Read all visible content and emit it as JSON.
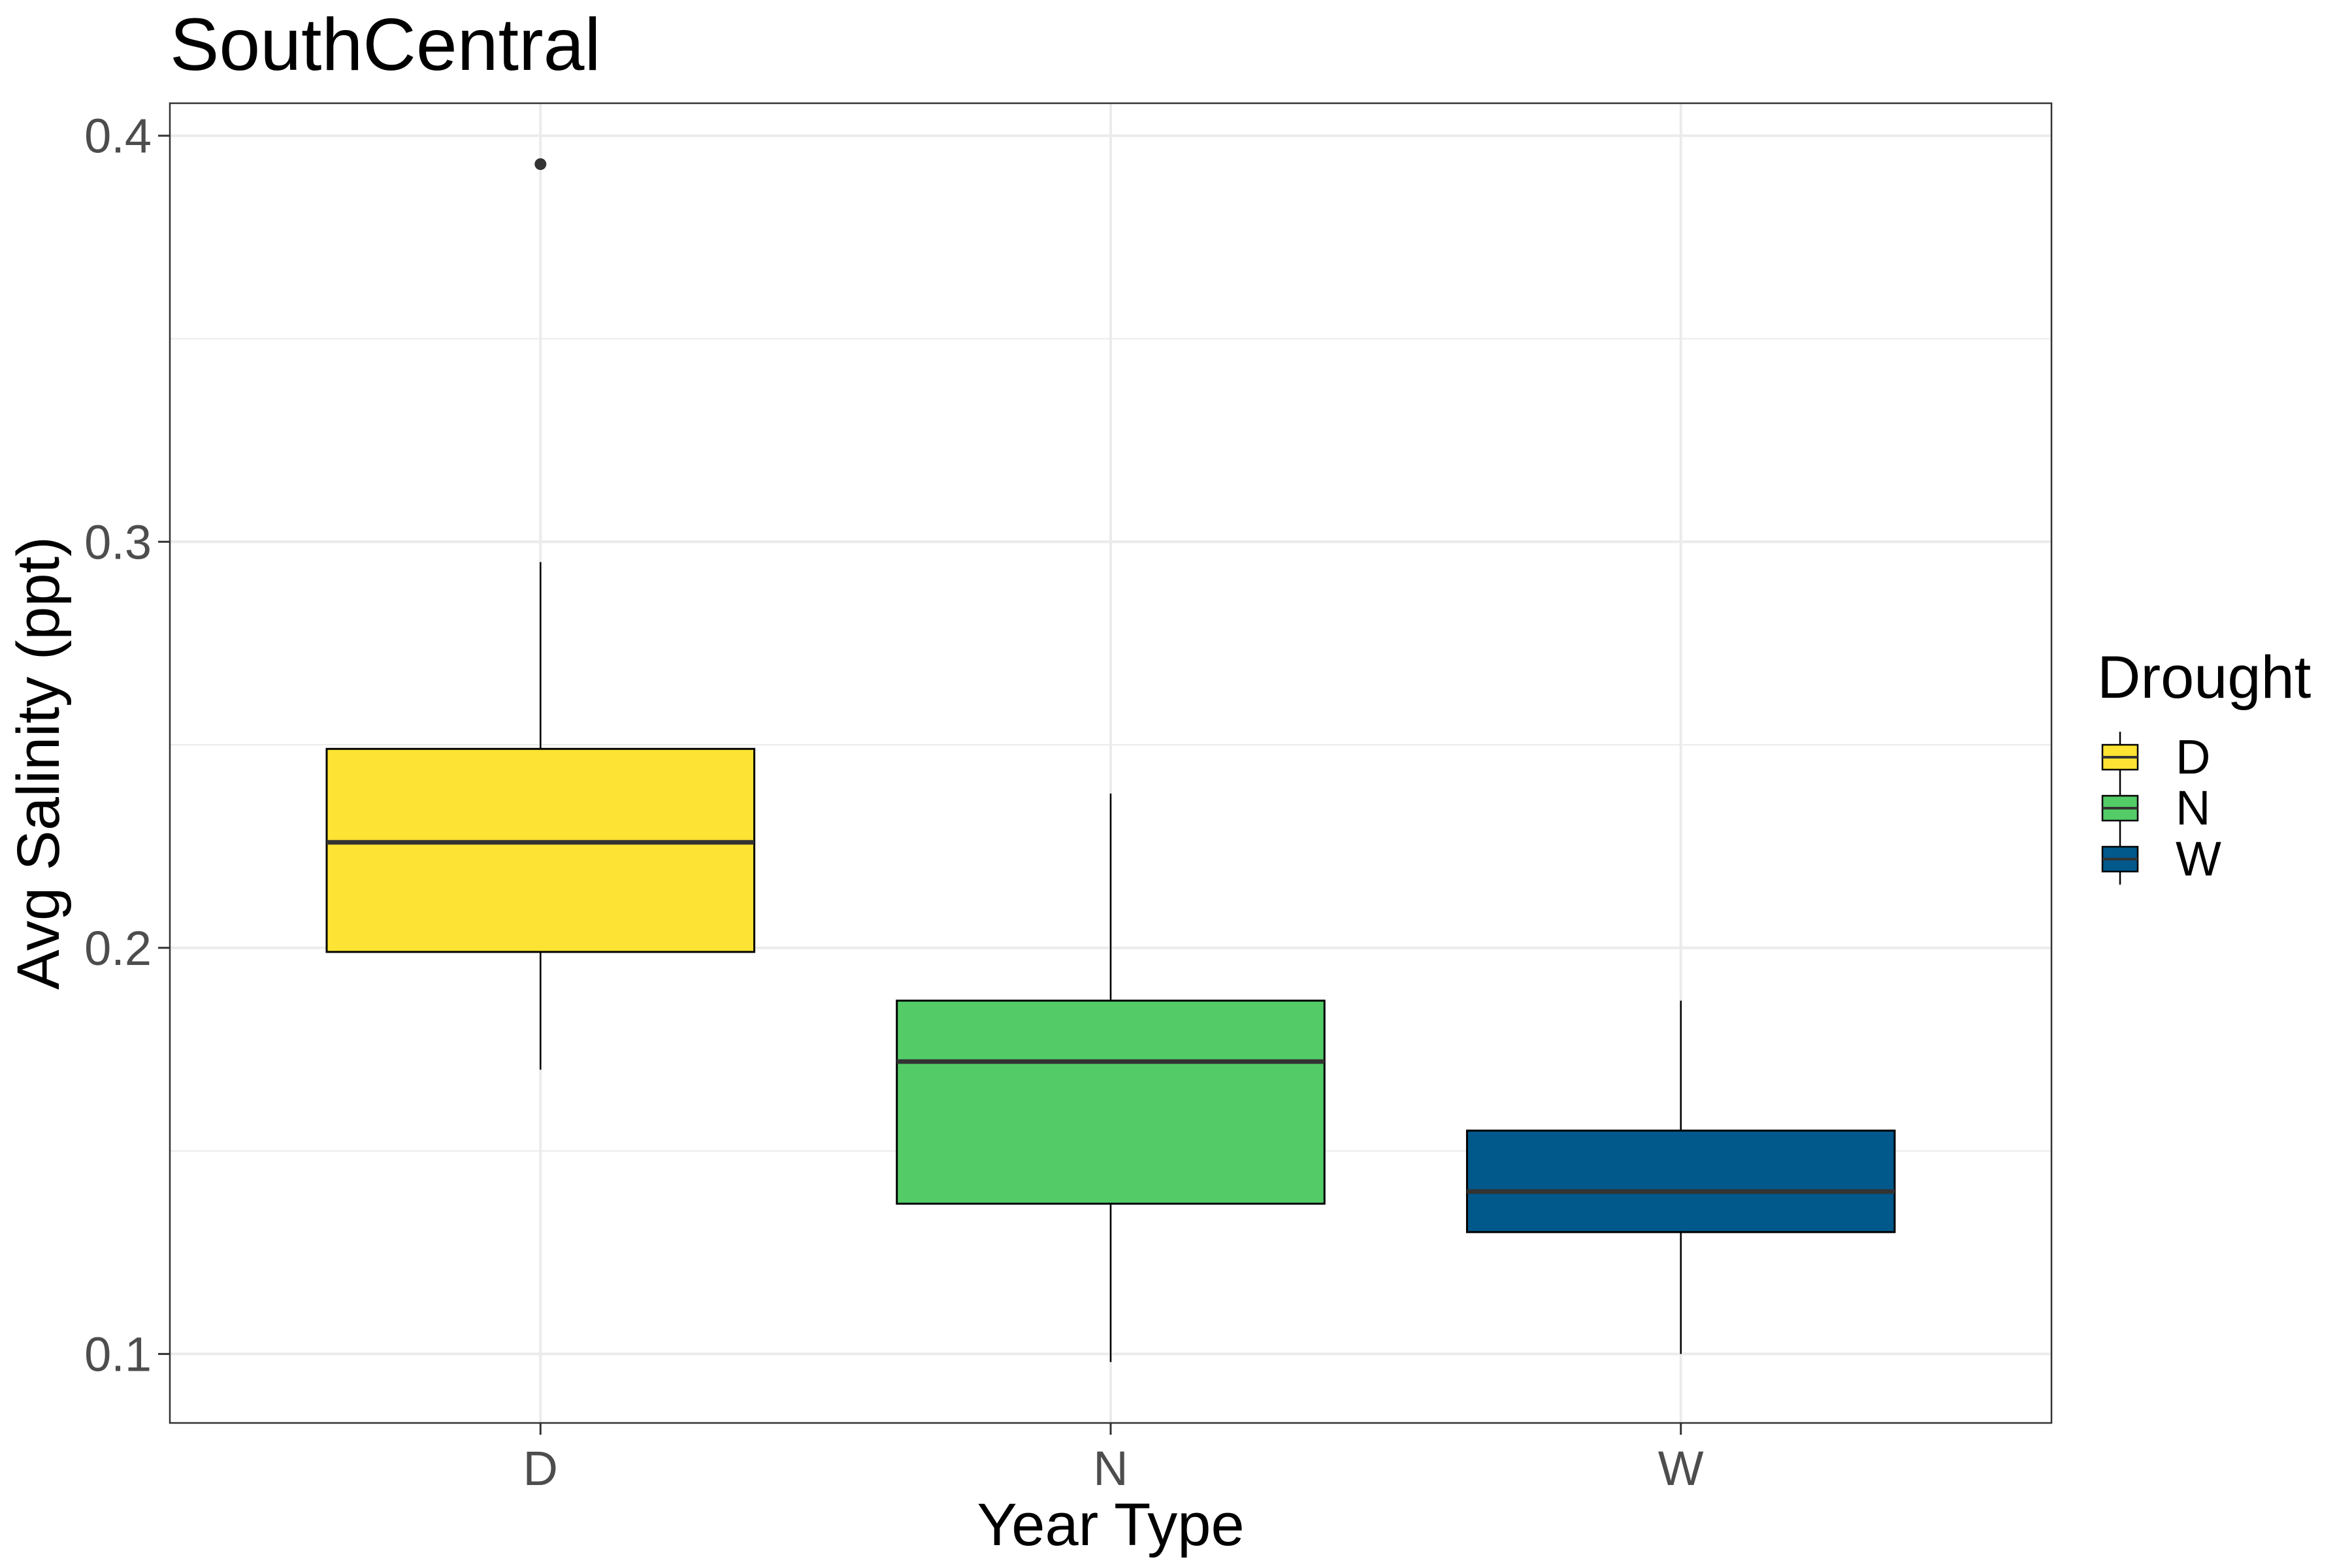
{
  "chart_data": {
    "type": "box",
    "title": "SouthCentral",
    "xlabel": "Year Type",
    "ylabel": "Avg Salinity (ppt)",
    "ylim": [
      0.083,
      0.408
    ],
    "y_ticks": [
      0.1,
      0.2,
      0.3,
      0.4
    ],
    "y_tick_labels": [
      "0.1",
      "0.2",
      "0.3",
      "0.4"
    ],
    "categories": [
      "D",
      "N",
      "W"
    ],
    "boxes": [
      {
        "category": "D",
        "whisker_low": 0.17,
        "q1": 0.199,
        "median": 0.226,
        "q3": 0.249,
        "whisker_high": 0.295,
        "outliers": [
          0.393
        ],
        "color": "#FDE333"
      },
      {
        "category": "N",
        "whisker_low": 0.098,
        "q1": 0.137,
        "median": 0.172,
        "q3": 0.187,
        "whisker_high": 0.238,
        "outliers": [],
        "color": "#53CC67"
      },
      {
        "category": "W",
        "whisker_low": 0.1,
        "q1": 0.13,
        "median": 0.14,
        "q3": 0.155,
        "whisker_high": 0.187,
        "outliers": [],
        "color": "#00588B"
      }
    ],
    "legend": {
      "title": "Drought",
      "position": "right",
      "entries": [
        {
          "label": "D",
          "color": "#FDE333"
        },
        {
          "label": "N",
          "color": "#53CC67"
        },
        {
          "label": "W",
          "color": "#00588B"
        }
      ]
    },
    "grid": true
  }
}
